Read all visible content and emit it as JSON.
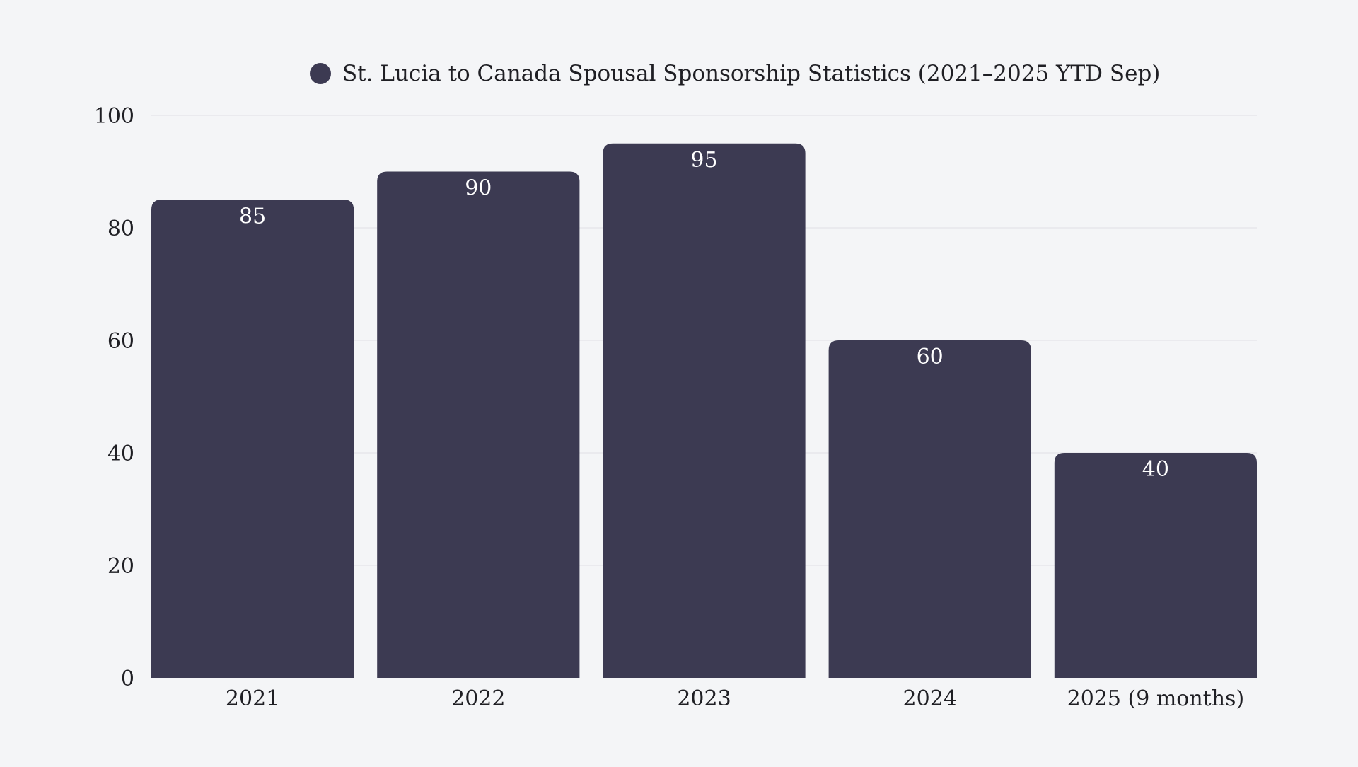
{
  "chart_data": {
    "type": "bar",
    "title": "",
    "legend": [
      "St. Lucia to Canada Spousal Sponsorship Statistics (2021–2025 YTD Sep)"
    ],
    "legend_position": "top-center",
    "categories": [
      "2021",
      "2022",
      "2023",
      "2024",
      "2025 (9 months)"
    ],
    "series": [
      {
        "name": "St. Lucia to Canada Spousal Sponsorship Statistics (2021–2025 YTD Sep)",
        "values": [
          85,
          90,
          95,
          60,
          40
        ]
      }
    ],
    "data_labels": [
      "85",
      "90",
      "95",
      "60",
      "40"
    ],
    "xlabel": "",
    "ylabel": "",
    "ylim": [
      0,
      100
    ],
    "yticks": [
      "0",
      "20",
      "40",
      "60",
      "80",
      "100"
    ],
    "grid": true,
    "colors": {
      "bar": "#3c3a52",
      "background": "#f4f5f7",
      "grid": "#dfe0e4",
      "text": "#1f1f24",
      "label": "#ffffff"
    }
  }
}
